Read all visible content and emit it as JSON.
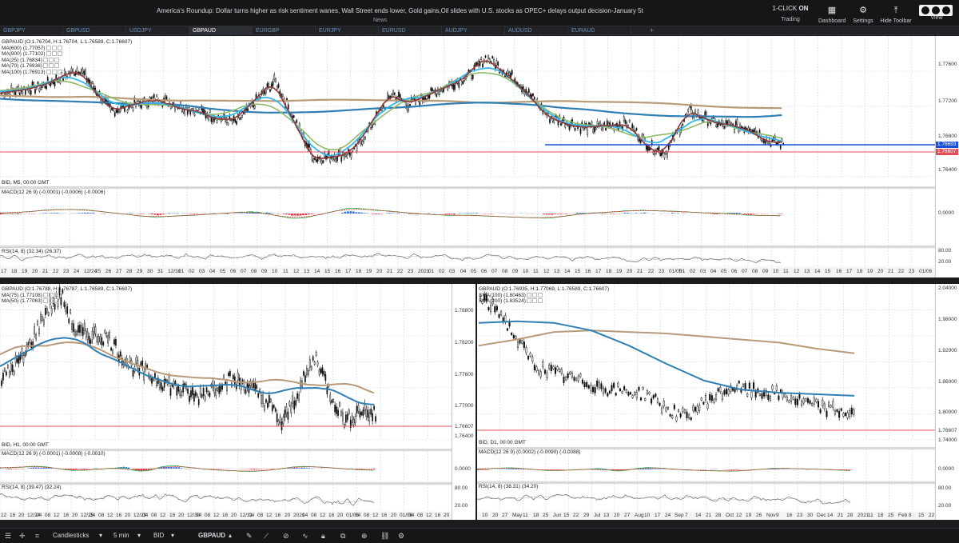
{
  "topbar": {
    "news_headline": "America's Roundup: Dollar turns higher as risk sentiment wanes, Wall Street ends lower, Gold gains,Oil slides with U.S. stocks as OPEC+ delays output decision-January 5t",
    "news_label": "News",
    "one_click_label": "1-CLICK",
    "one_click_state": "ON",
    "trading_label": "Trading",
    "dashboard_label": "Dashboard",
    "settings_label": "Settings",
    "hide_toolbar_label": "Hide Toolbar",
    "view_label": "View"
  },
  "tabs": [
    "GBPJPY",
    "GBPUSD",
    "USDJPY",
    "GBPAUD",
    "EURGBP",
    "EURJPY",
    "EURUSD",
    "AUDJPY",
    "AUDUSD",
    "EURAUD"
  ],
  "active_tab": "GBPAUD",
  "top_chart": {
    "ohlc": "GBPAUD (O:1.76704, H:1.76704, L:1.76589, C:1.76607)",
    "indicators": [
      "MA(600) (1.77057)",
      "MA(900) (1.77102)",
      "MA(25) (1.76834)",
      "MA(70) (1.76936)",
      "MA(100) (1.76913)"
    ],
    "footer": "BID, M5, 00:00 GMT",
    "y_ticks": [
      "1.77600",
      "1.77200",
      "1.76800",
      "1.76400"
    ],
    "price_blue": "1.76693",
    "price_red": "1.76607",
    "macd_label": "MACD(12 26 9) (-0.0001) (-0.0006) (-0.0006)",
    "macd_tick": "0.0000",
    "rsi_label": "RSI(14, 8) (32.34) (26.37)",
    "rsi_ticks": [
      "80.00",
      "20.00"
    ],
    "x_ticks": [
      "17",
      "18",
      "19",
      "20",
      "21",
      "22",
      "23",
      "24",
      "12/24",
      "25",
      "26",
      "27",
      "28",
      "29",
      "30",
      "31",
      "12/31",
      "01",
      "02",
      "03",
      "04",
      "05",
      "06",
      "07",
      "08",
      "09",
      "10",
      "11",
      "12",
      "13",
      "14",
      "15",
      "16",
      "17",
      "18",
      "19",
      "20",
      "21",
      "22",
      "23",
      "2021",
      "01",
      "02",
      "03",
      "04",
      "05",
      "06",
      "07",
      "08",
      "09",
      "10",
      "11",
      "12",
      "13",
      "14",
      "15",
      "16",
      "17",
      "18",
      "19",
      "20",
      "21",
      "22",
      "23",
      "01/05",
      "01",
      "02",
      "03",
      "04",
      "05",
      "06",
      "07",
      "08",
      "09",
      "10",
      "11",
      "12",
      "13",
      "14",
      "15",
      "16",
      "17",
      "18",
      "19",
      "20",
      "21",
      "22",
      "23",
      "01/06"
    ]
  },
  "h1_chart": {
    "ohlc": "GBPAUD (O:1.76788, H:1.76787, L:1.76589, C:1.76607)",
    "indicators": [
      "MA(75) (1.77108)",
      "MA(50) (1.77063)"
    ],
    "footer": "BID, H1, 00:00 GMT",
    "y_ticks": [
      "1.78800",
      "1.78200",
      "1.77600",
      "1.77000",
      "1.76607",
      "1.76400"
    ],
    "macd_label": "MACD(12 26 9) (-0.0001) (-0.0008) (-0.0010)",
    "macd_tick": "0.0000",
    "rsi_label": "RSI(14, 8) (39.47) (32.24)",
    "rsi_ticks": [
      "80.00",
      "20.00"
    ],
    "x_ticks": [
      "12",
      "16",
      "20",
      "12/24",
      "04",
      "08",
      "12",
      "16",
      "20",
      "12/25",
      "04",
      "08",
      "12",
      "16",
      "20",
      "12/29",
      "04",
      "08",
      "12",
      "16",
      "20",
      "12/30",
      "04",
      "08",
      "12",
      "16",
      "20",
      "12/31",
      "04",
      "08",
      "12",
      "16",
      "20",
      "2021",
      "04",
      "08",
      "12",
      "16",
      "20",
      "01/05",
      "04",
      "08",
      "12",
      "16",
      "20",
      "01/06",
      "04",
      "08",
      "12",
      "16",
      "20"
    ]
  },
  "d1_chart": {
    "ohlc": "GBPAUD (O:1.76935, H:1.77069, L:1.76589, C:1.76607)",
    "indicators": [
      "SMA(100) (1.80463)",
      "SMA(200) (1.83524)"
    ],
    "footer": "BID, D1, 00:00 GMT",
    "y_ticks": [
      "2.04000",
      "1.98000",
      "1.92000",
      "1.86000",
      "1.80000",
      "1.76607",
      "1.74000"
    ],
    "macd_label": "MACD(12 26 9) (0.0002) (-0.0090) (-0.0088)",
    "macd_tick": "0.0000",
    "rsi_label": "RSI(14, 8) (38.31) (34.20)",
    "rsi_ticks": [
      "80.00",
      "20.00"
    ],
    "x_ticks": [
      "10",
      "20",
      "27",
      "May",
      "11",
      "18",
      "25",
      "Jun",
      "15",
      "22",
      "29",
      "Jul",
      "13",
      "20",
      "27",
      "Aug",
      "10",
      "17",
      "24",
      "Sep",
      "7",
      "14",
      "21",
      "28",
      "Oct",
      "12",
      "19",
      "26",
      "Nov",
      "9",
      "16",
      "23",
      "30",
      "Dec",
      "14",
      "21",
      "28",
      "2021",
      "11",
      "18",
      "25",
      "Feb",
      "8",
      "15",
      "22"
    ]
  },
  "bottombar": {
    "chart_type": "Candlesticks",
    "timeframe": "5 min",
    "price_side": "BID",
    "symbol": "GBPAUD"
  },
  "colors": {
    "ma_blue": "#2f7fb5",
    "ma_tan": "#b89a78",
    "ma_green": "#8fba6a",
    "ma_cyan": "#35b7ee",
    "ma_dark_red": "#8b3a3a",
    "price_line_red": "#e0505a",
    "price_line_blue": "#1a4fd6"
  }
}
